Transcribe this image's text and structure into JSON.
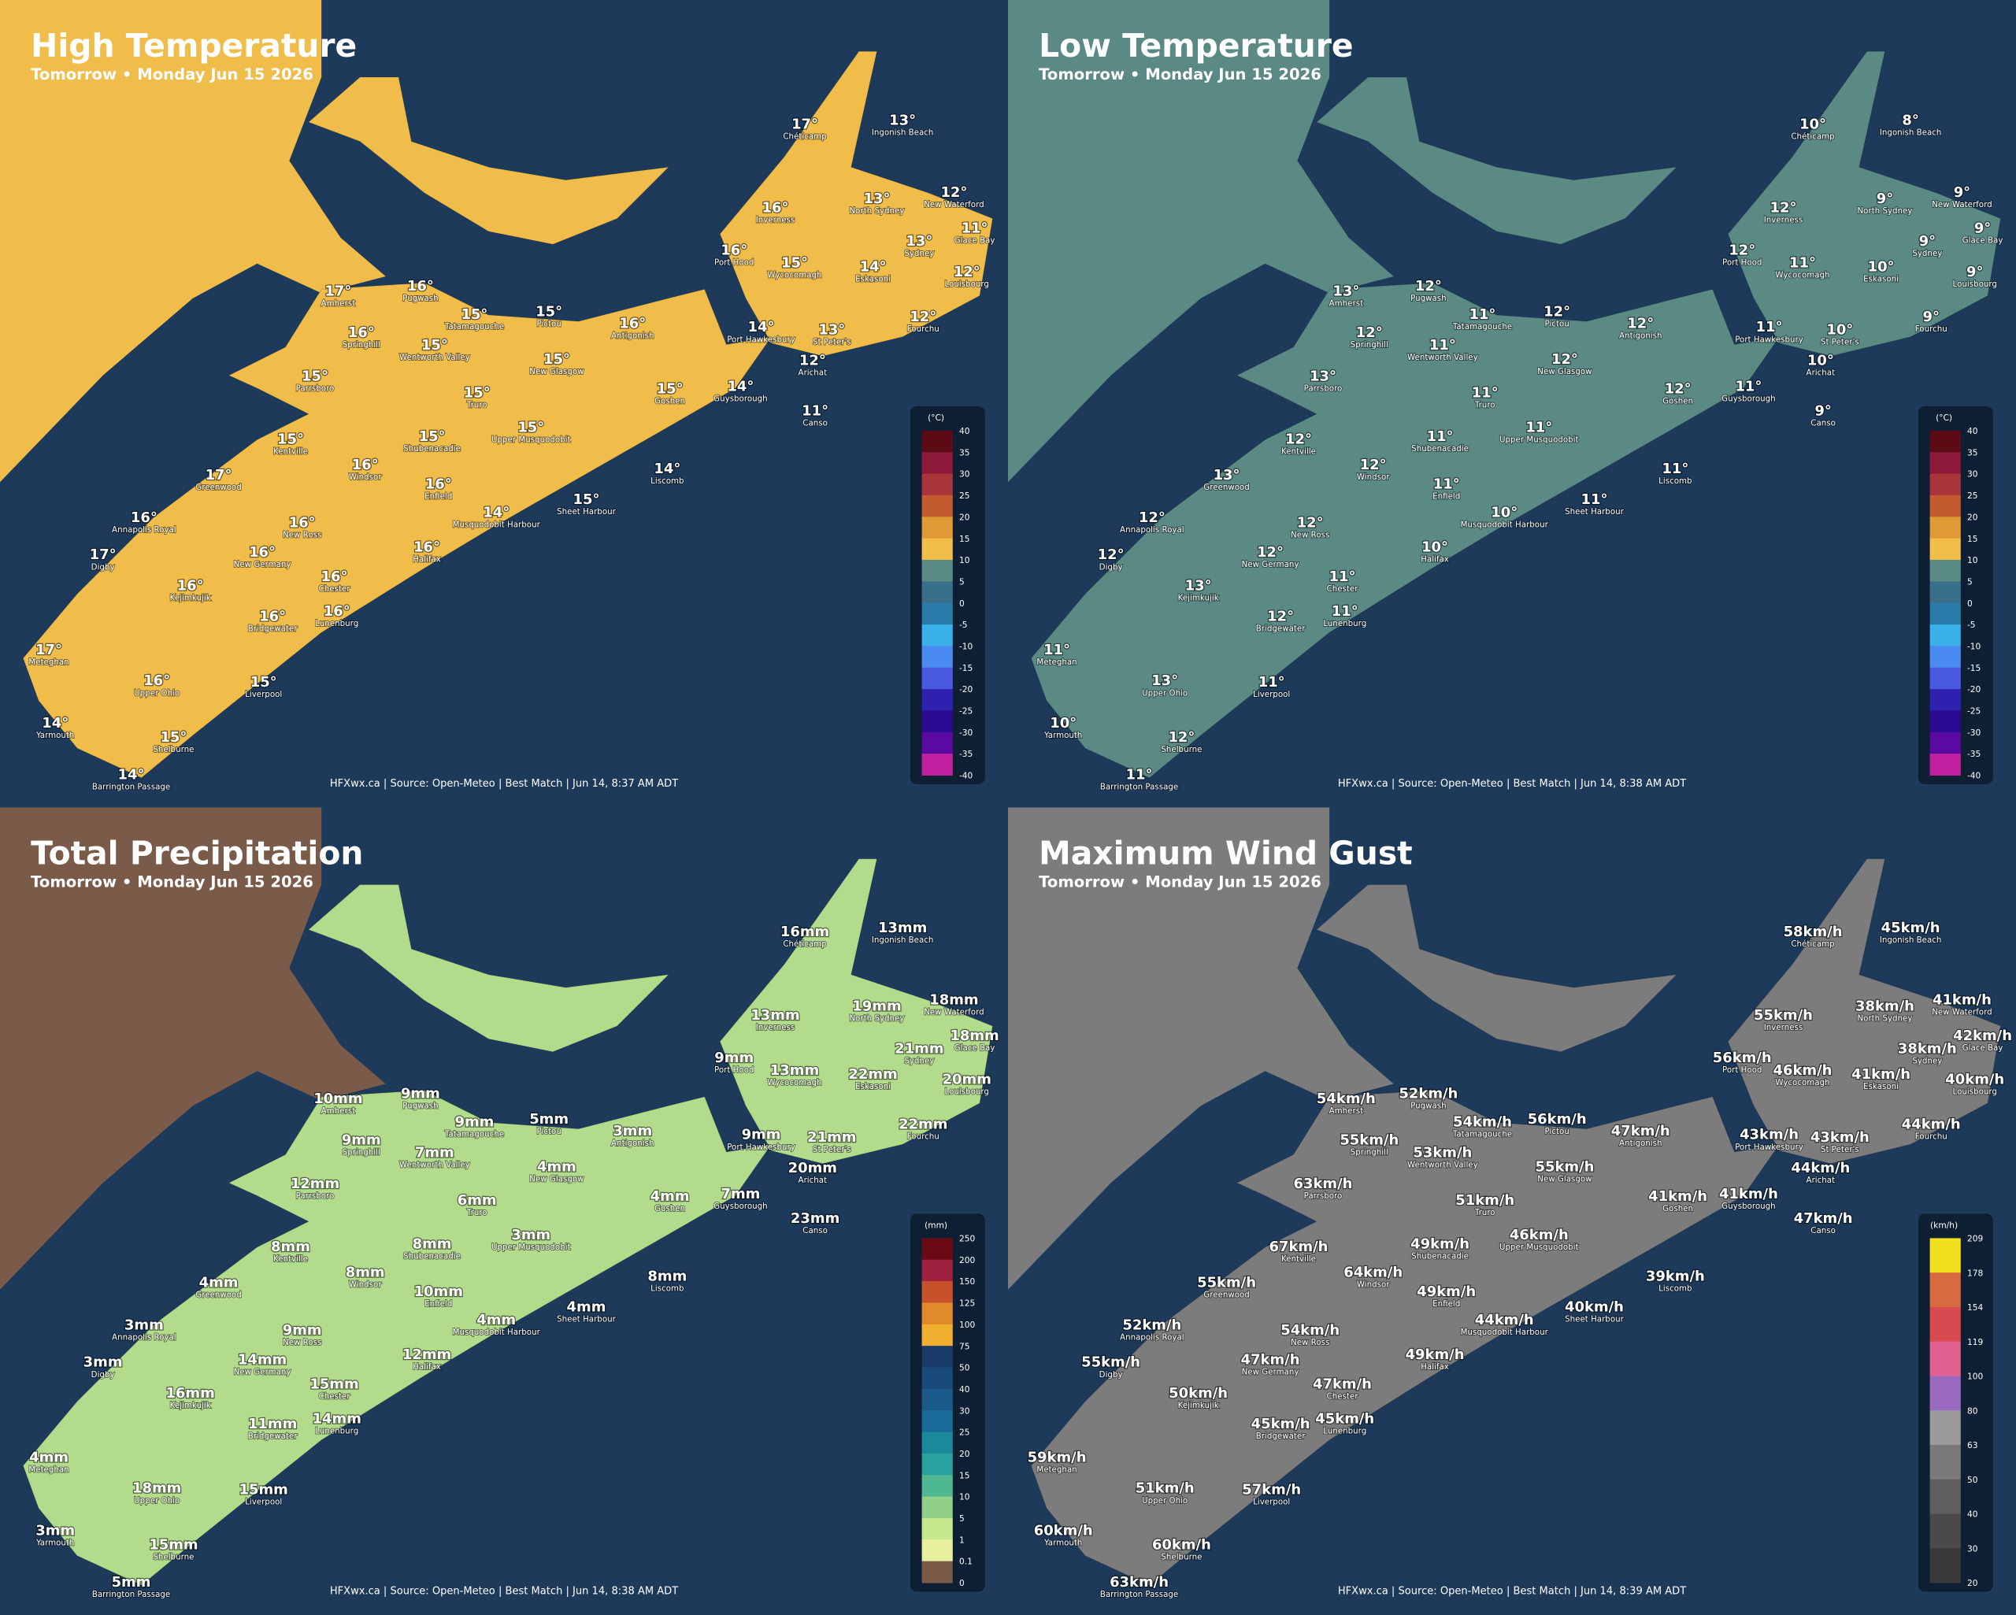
{
  "place_names": [
    "Chéticamp",
    "Ingonish Beach",
    "Inverness",
    "North Sydney",
    "New Waterford",
    "Glace Bay",
    "Sydney",
    "Port Hood",
    "Wycocomagh",
    "Eskasoni",
    "Louisbourg",
    "Amherst",
    "Pugwash",
    "Tatamagouche",
    "Pictou",
    "Antigonish",
    "Springhill",
    "Port Hawkesbury",
    "St Peter's",
    "Fourchu",
    "Wentworth Valley",
    "New Glasgow",
    "Arichat",
    "Parrsboro",
    "Goshen",
    "Guysborough",
    "Truro",
    "Canso",
    "Kentville",
    "Shubenacadie",
    "Upper Musquodobit",
    "Windsor",
    "Greenwood",
    "Liscomb",
    "Enfield",
    "Sheet Harbour",
    "Musquodobit Harbour",
    "Annapolis Royal",
    "New Ross",
    "Digby",
    "New Germany",
    "Halifax",
    "Chester",
    "Kejimkujik",
    "Bridgewater",
    "Lunenburg",
    "Meteghan",
    "Upper Ohio",
    "Liverpool",
    "Yarmouth",
    "Shelburne",
    "Barrington Passage"
  ],
  "panels": [
    {
      "title": "High Temperature",
      "subtitle": "Tomorrow • Monday Jun 15 2026",
      "land_color": "#f0bd4b",
      "west_land_color": "#f0bd4b",
      "credit": "HFXwx.ca | Source: Open-Meteo | Best Match | Jun 14, 8:37 AM ADT",
      "values": [
        "17°",
        "13°",
        "16°",
        "13°",
        "12°",
        "11°",
        "13°",
        "16°",
        "15°",
        "14°",
        "12°",
        "17°",
        "16°",
        "15°",
        "15°",
        "16°",
        "16°",
        "14°",
        "13°",
        "12°",
        "15°",
        "15°",
        "12°",
        "15°",
        "15°",
        "14°",
        "15°",
        "11°",
        "15°",
        "15°",
        "15°",
        "16°",
        "17°",
        "14°",
        "16°",
        "15°",
        "14°",
        "16°",
        "16°",
        "17°",
        "16°",
        "16°",
        "16°",
        "16°",
        "16°",
        "16°",
        "17°",
        "16°",
        "15°",
        "14°",
        "15°",
        "14°"
      ],
      "legend": {
        "unit": "(°C)",
        "ticks": [
          40,
          35,
          30,
          25,
          20,
          15,
          10,
          5,
          0,
          -5,
          -10,
          -15,
          -20,
          -25,
          -30,
          -35,
          -40
        ],
        "colors": [
          "#5c0a14",
          "#8c1a3a",
          "#a8353a",
          "#c45a30",
          "#e09a35",
          "#f2be4a",
          "#5a8a84",
          "#3a6f8a",
          "#2a7aaa",
          "#3ab0e8",
          "#4a8af0",
          "#4a5ae0",
          "#3020b0",
          "#2a0a90",
          "#5a0aa0",
          "#c020a0"
        ]
      }
    },
    {
      "title": "Low Temperature",
      "subtitle": "Tomorrow • Monday Jun 15 2026",
      "land_color": "#5b8a84",
      "west_land_color": "#5b8a84",
      "credit": "HFXwx.ca | Source: Open-Meteo | Best Match | Jun 14, 8:38 AM ADT",
      "values": [
        "10°",
        "8°",
        "12°",
        "9°",
        "9°",
        "9°",
        "9°",
        "12°",
        "11°",
        "10°",
        "9°",
        "13°",
        "12°",
        "11°",
        "12°",
        "12°",
        "12°",
        "11°",
        "10°",
        "9°",
        "11°",
        "12°",
        "10°",
        "13°",
        "12°",
        "11°",
        "11°",
        "9°",
        "12°",
        "11°",
        "11°",
        "12°",
        "13°",
        "11°",
        "11°",
        "11°",
        "10°",
        "12°",
        "12°",
        "12°",
        "12°",
        "10°",
        "11°",
        "13°",
        "12°",
        "11°",
        "11°",
        "13°",
        "11°",
        "10°",
        "12°",
        "11°"
      ],
      "legend": {
        "unit": "(°C)",
        "ticks": [
          40,
          35,
          30,
          25,
          20,
          15,
          10,
          5,
          0,
          -5,
          -10,
          -15,
          -20,
          -25,
          -30,
          -35,
          -40
        ],
        "colors": [
          "#5c0a14",
          "#8c1a3a",
          "#a8353a",
          "#c45a30",
          "#e09a35",
          "#f2be4a",
          "#5a8a84",
          "#3a6f8a",
          "#2a7aaa",
          "#3ab0e8",
          "#4a8af0",
          "#4a5ae0",
          "#3020b0",
          "#2a0a90",
          "#5a0aa0",
          "#c020a0"
        ]
      }
    },
    {
      "title": "Total Precipitation",
      "subtitle": "Tomorrow • Monday Jun 15 2026",
      "land_color": "#b2dc8c",
      "west_land_color": "#7a5a48",
      "credit": "HFXwx.ca | Source: Open-Meteo | Best Match | Jun 14, 8:38 AM ADT",
      "values": [
        "16mm",
        "13mm",
        "13mm",
        "19mm",
        "18mm",
        "18mm",
        "21mm",
        "9mm",
        "13mm",
        "22mm",
        "20mm",
        "10mm",
        "9mm",
        "9mm",
        "5mm",
        "3mm",
        "9mm",
        "9mm",
        "21mm",
        "22mm",
        "7mm",
        "4mm",
        "20mm",
        "12mm",
        "4mm",
        "7mm",
        "6mm",
        "23mm",
        "8mm",
        "8mm",
        "3mm",
        "8mm",
        "4mm",
        "8mm",
        "10mm",
        "4mm",
        "4mm",
        "3mm",
        "9mm",
        "3mm",
        "14mm",
        "12mm",
        "15mm",
        "16mm",
        "11mm",
        "14mm",
        "4mm",
        "18mm",
        "15mm",
        "3mm",
        "15mm",
        "5mm"
      ],
      "legend": {
        "unit": "(mm)",
        "ticks": [
          250,
          200,
          150,
          125,
          100,
          75,
          50,
          40,
          30,
          25,
          20,
          15,
          10,
          5,
          1,
          0.1,
          0
        ],
        "colors": [
          "#6a0a14",
          "#a02040",
          "#c8502a",
          "#e08a2a",
          "#f2b030",
          "#1a3a6a",
          "#1a4a7a",
          "#1a5a8a",
          "#1a6a9a",
          "#1a8a9a",
          "#2aa0a0",
          "#50b890",
          "#90d088",
          "#c8e890",
          "#e8f0a0",
          "#7a5a48"
        ]
      }
    },
    {
      "title": "Maximum Wind Gust",
      "subtitle": "Tomorrow • Monday Jun 15 2026",
      "land_color": "#7c7c7c",
      "west_land_color": "#7c7c7c",
      "credit": "HFXwx.ca | Source: Open-Meteo | Best Match | Jun 14, 8:39 AM ADT",
      "values": [
        "58km/h",
        "45km/h",
        "55km/h",
        "38km/h",
        "41km/h",
        "42km/h",
        "38km/h",
        "56km/h",
        "46km/h",
        "41km/h",
        "40km/h",
        "54km/h",
        "52km/h",
        "54km/h",
        "56km/h",
        "47km/h",
        "55km/h",
        "43km/h",
        "43km/h",
        "44km/h",
        "53km/h",
        "55km/h",
        "44km/h",
        "63km/h",
        "41km/h",
        "41km/h",
        "51km/h",
        "47km/h",
        "67km/h",
        "49km/h",
        "46km/h",
        "64km/h",
        "55km/h",
        "39km/h",
        "49km/h",
        "40km/h",
        "44km/h",
        "52km/h",
        "54km/h",
        "55km/h",
        "47km/h",
        "49km/h",
        "47km/h",
        "50km/h",
        "45km/h",
        "45km/h",
        "59km/h",
        "51km/h",
        "57km/h",
        "60km/h",
        "60km/h",
        "63km/h"
      ],
      "legend": {
        "unit": "(km/h)",
        "ticks": [
          209,
          178,
          154,
          119,
          100,
          80,
          63,
          50,
          40,
          30,
          20
        ],
        "colors": [
          "#f0e020",
          "#d86a40",
          "#d84a50",
          "#e06090",
          "#9a6ac0",
          "#9a9a9a",
          "#7a7a7a",
          "#5e5e5e",
          "#4a4a4a",
          "#3a3a3a"
        ]
      }
    }
  ]
}
